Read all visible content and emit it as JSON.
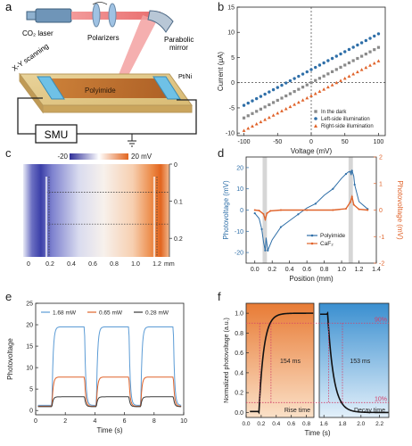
{
  "panels": {
    "a": {
      "letter": "a",
      "labels": {
        "laser": "CO₂ laser",
        "polarizers": "Polarizers",
        "mirror_1": "Parabolic",
        "mirror_2": "mirror",
        "scanning": "X-Y scanning",
        "sample": "Polyimide",
        "electrode": "Pt/Ni",
        "smu": "SMU"
      }
    },
    "b": {
      "letter": "b"
    },
    "c": {
      "letter": "c",
      "colorbar_min": "-20",
      "colorbar_max": "20 mV",
      "unit": "mm"
    },
    "d": {
      "letter": "d"
    },
    "e": {
      "letter": "e"
    },
    "f": {
      "letter": "f",
      "rise_label": "154 ms",
      "decay_label": "153 ms",
      "rise_name": "Rise time",
      "decay_name": "Decay time",
      "pct_90": "90%",
      "pct_10": "10%"
    }
  },
  "chart_data": [
    {
      "panel": "b",
      "type": "scatter",
      "xlabel": "Voltage (mV)",
      "ylabel": "Current (μA)",
      "xlim": [
        -110,
        110
      ],
      "ylim": [
        -10.5,
        15
      ],
      "xticks": [
        -100,
        -50,
        0,
        50,
        100
      ],
      "yticks": [
        -10,
        -5,
        0,
        5,
        10,
        15
      ],
      "legend_position": "bottom-right",
      "series": [
        {
          "name": "In the dark",
          "color": "#8a8a8a",
          "marker": "square",
          "intercept": 0,
          "slope": 0.07
        },
        {
          "name": "Left-side illumination",
          "color": "#2f6fa8",
          "marker": "circle",
          "intercept": 2.6,
          "slope": 0.071
        },
        {
          "name": "Right-side illumination",
          "color": "#e0632a",
          "marker": "triangle",
          "intercept": -2.6,
          "slope": 0.069
        }
      ]
    },
    {
      "panel": "c",
      "type": "heatmap",
      "xticks": [
        "0",
        "0.2",
        "0.4",
        "0.6",
        "0.8",
        "1.0",
        "1.2"
      ],
      "yticks": [
        "0",
        "0.1",
        "0.2"
      ],
      "colorbar_range": [
        -20,
        20
      ]
    },
    {
      "panel": "d",
      "type": "line",
      "xlabel": "Position (mm)",
      "ylabel": "Photovoltage (mV)",
      "ylabel_right": "Photovoltage (mV)",
      "xlim": [
        -0.1,
        1.4
      ],
      "ylim": [
        -25,
        25
      ],
      "ylim_right": [
        -2,
        2
      ],
      "xticks": [
        "0.0",
        "0.2",
        "0.4",
        "0.6",
        "0.8",
        "1.0",
        "1.2",
        "1.4"
      ],
      "yticks": [
        "-20",
        "-10",
        "0",
        "10",
        "20"
      ],
      "yticks_right": [
        "-2",
        "-1",
        "0",
        "1",
        "2"
      ],
      "legend_position": "bottom-right",
      "series": [
        {
          "name": "Polyimide",
          "color": "#2f6fa8",
          "x": [
            0.0,
            0.05,
            0.08,
            0.1,
            0.12,
            0.13,
            0.15,
            0.2,
            0.3,
            0.4,
            0.5,
            0.6,
            0.7,
            0.8,
            0.9,
            1.0,
            1.05,
            1.08,
            1.1,
            1.11,
            1.12,
            1.14,
            1.15,
            1.2,
            1.3
          ],
          "y": [
            -1.5,
            -4,
            -9,
            -15,
            -19,
            -13,
            -19,
            -14,
            -8,
            -5,
            -2,
            1,
            3,
            7,
            10,
            15,
            17,
            18,
            18,
            16.5,
            18.5,
            16,
            12,
            4,
            0.5
          ]
        },
        {
          "name": "CaF₂",
          "color": "#e0632a",
          "x": [
            0.0,
            0.05,
            0.1,
            0.12,
            0.14,
            0.18,
            0.3,
            0.6,
            0.9,
            1.05,
            1.1,
            1.12,
            1.14,
            1.2,
            1.3
          ],
          "y": [
            0.0,
            -0.02,
            -0.15,
            -0.35,
            -0.12,
            -0.03,
            0.0,
            0.0,
            0.0,
            0.05,
            0.3,
            0.5,
            0.2,
            0.03,
            0.0
          ]
        }
      ]
    },
    {
      "panel": "e",
      "type": "line",
      "xlabel": "Time (s)",
      "ylabel": "Photovoltage",
      "xlim": [
        0,
        10
      ],
      "ylim": [
        -1,
        25
      ],
      "xticks": [
        0,
        2,
        4,
        6,
        8,
        10
      ],
      "yticks": [
        0,
        5,
        10,
        15,
        20,
        25
      ],
      "legend_position": "top",
      "pulses_on": [
        [
          1.1,
          3.3
        ],
        [
          4.1,
          6.3
        ],
        [
          7.1,
          9.3
        ]
      ],
      "series": [
        {
          "name": "1.68 mW",
          "color": "#5b9bd5",
          "baseline": 1.2,
          "high": 19.5
        },
        {
          "name": "0.65 mW",
          "color": "#e0632a",
          "baseline": 1.0,
          "high": 7.8
        },
        {
          "name": "0.28 mW",
          "color": "#3a3a3a",
          "baseline": 0.9,
          "high": 3.2
        }
      ]
    },
    {
      "panel": "f",
      "type": "line",
      "xlabel": "Time (s)",
      "ylabel": "Normalized photovoltage (a.u.)",
      "ylim": [
        -0.05,
        1.1
      ],
      "yticks": [
        "0.0",
        "0.2",
        "0.4",
        "0.6",
        "0.8",
        "1.0"
      ],
      "xticks": [
        "0.0",
        "0.2",
        "0.4",
        "0.6",
        "0.8",
        "1.6",
        "1.8",
        "2.0",
        "2.2"
      ],
      "rise_time_ms": 154,
      "decay_time_ms": 153
    }
  ]
}
